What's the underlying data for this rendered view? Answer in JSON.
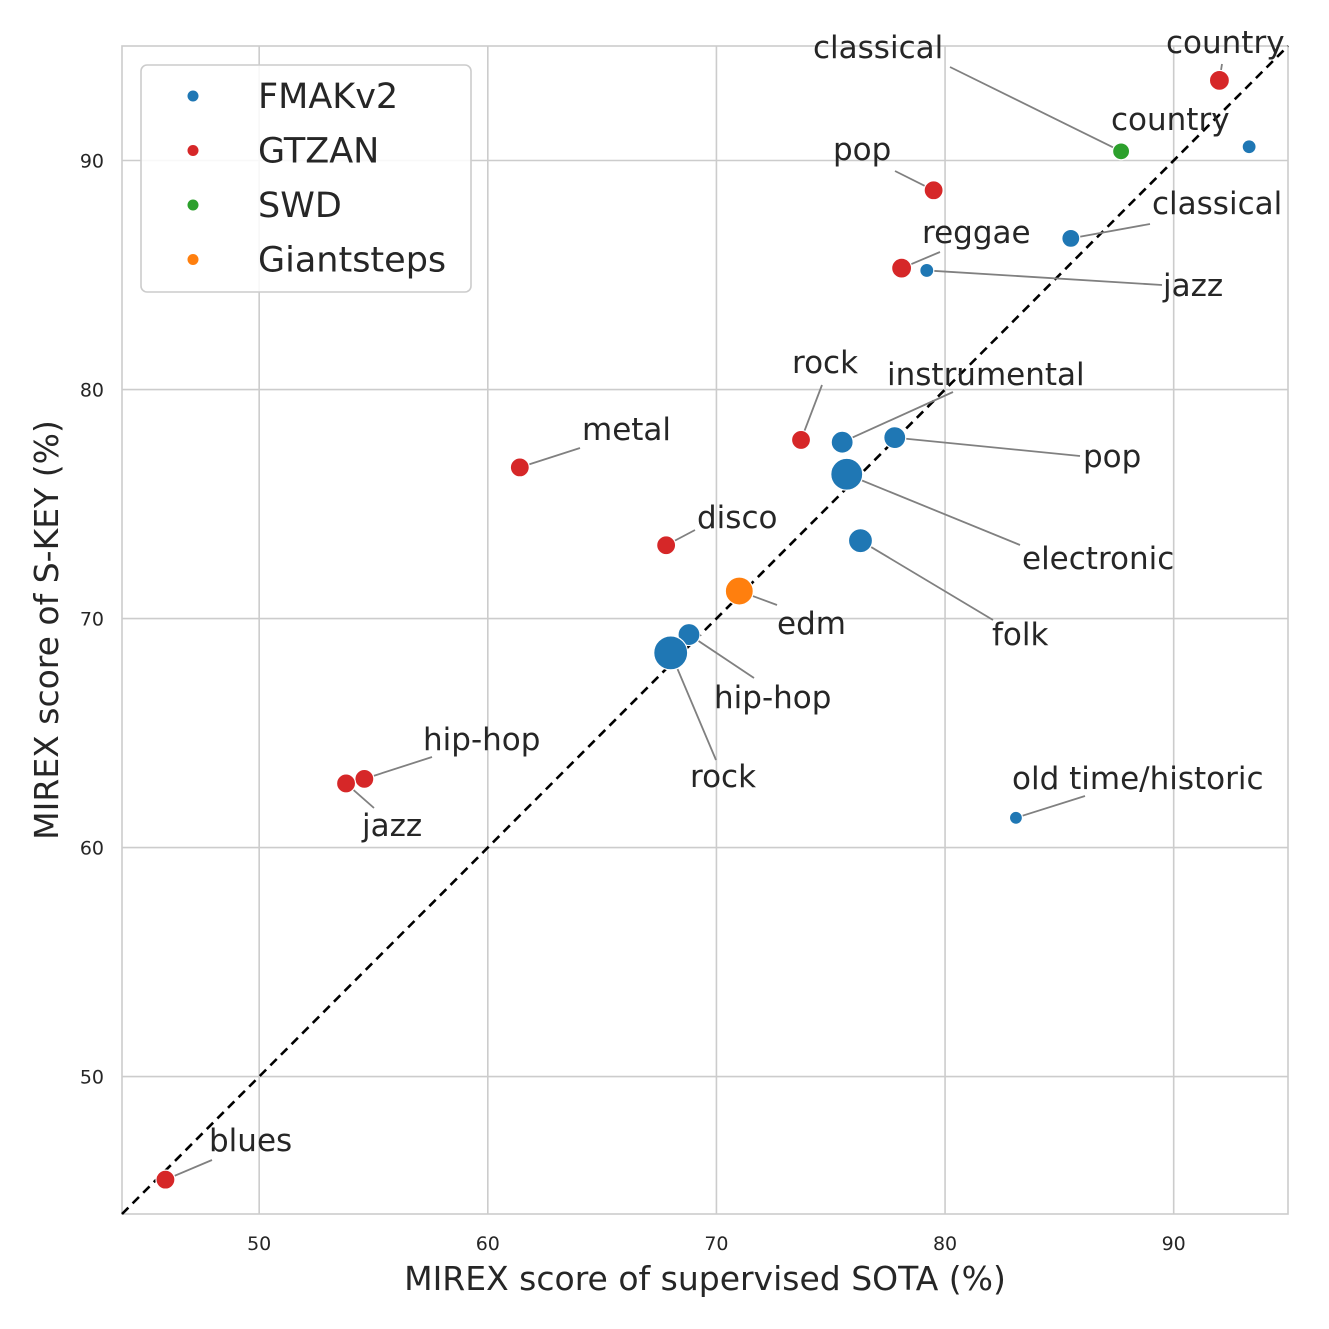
{
  "chart_data": {
    "type": "scatter",
    "title": "",
    "xlabel": "MIREX score of supervised SOTA (%)",
    "ylabel": "MIREX score of S-KEY (%)",
    "xlim": [
      44,
      95
    ],
    "ylim": [
      44,
      95
    ],
    "xticks": [
      50,
      60,
      70,
      80,
      90
    ],
    "yticks": [
      50,
      60,
      70,
      80,
      90
    ],
    "grid": true,
    "legend_position": "top-left",
    "reference_line": "y = x (dashed)",
    "series": [
      {
        "name": "FMAKv2",
        "color": "#1f77b4",
        "points": [
          {
            "x": 93.3,
            "y": 90.6,
            "label": ""
          },
          {
            "x": 85.5,
            "y": 86.6,
            "label": "classical"
          },
          {
            "x": 79.2,
            "y": 85.2,
            "label": "jazz"
          },
          {
            "x": 75.5,
            "y": 77.7,
            "label": "instrumental"
          },
          {
            "x": 77.8,
            "y": 77.9,
            "label": "pop"
          },
          {
            "x": 75.7,
            "y": 76.3,
            "label": "electronic"
          },
          {
            "x": 76.3,
            "y": 73.4,
            "label": "folk"
          },
          {
            "x": 68.8,
            "y": 69.3,
            "label": "hip-hop"
          },
          {
            "x": 68.0,
            "y": 68.5,
            "label": "rock"
          },
          {
            "x": 83.1,
            "y": 61.3,
            "label": "old time/historic"
          }
        ]
      },
      {
        "name": "GTZAN",
        "color": "#d62728",
        "points": [
          {
            "x": 92.0,
            "y": 93.5,
            "label": "country"
          },
          {
            "x": 79.5,
            "y": 88.7,
            "label": "pop"
          },
          {
            "x": 78.1,
            "y": 85.3,
            "label": "reggae"
          },
          {
            "x": 73.7,
            "y": 77.8,
            "label": "rock"
          },
          {
            "x": 61.4,
            "y": 76.6,
            "label": "metal"
          },
          {
            "x": 67.8,
            "y": 73.2,
            "label": "disco"
          },
          {
            "x": 54.6,
            "y": 63.0,
            "label": "hip-hop"
          },
          {
            "x": 53.8,
            "y": 62.8,
            "label": "jazz"
          },
          {
            "x": 45.9,
            "y": 45.5,
            "label": "blues"
          }
        ]
      },
      {
        "name": "SWD",
        "color": "#2ca02c",
        "points": [
          {
            "x": 87.7,
            "y": 90.4,
            "label": "country"
          }
        ]
      },
      {
        "name": "Giantsteps",
        "color": "#ff7f0e",
        "points": [
          {
            "x": 71.0,
            "y": 71.2,
            "label": "edm"
          }
        ]
      }
    ],
    "annotations": [
      {
        "text": "classical",
        "x": 87.7,
        "y": 90.4
      }
    ]
  }
}
